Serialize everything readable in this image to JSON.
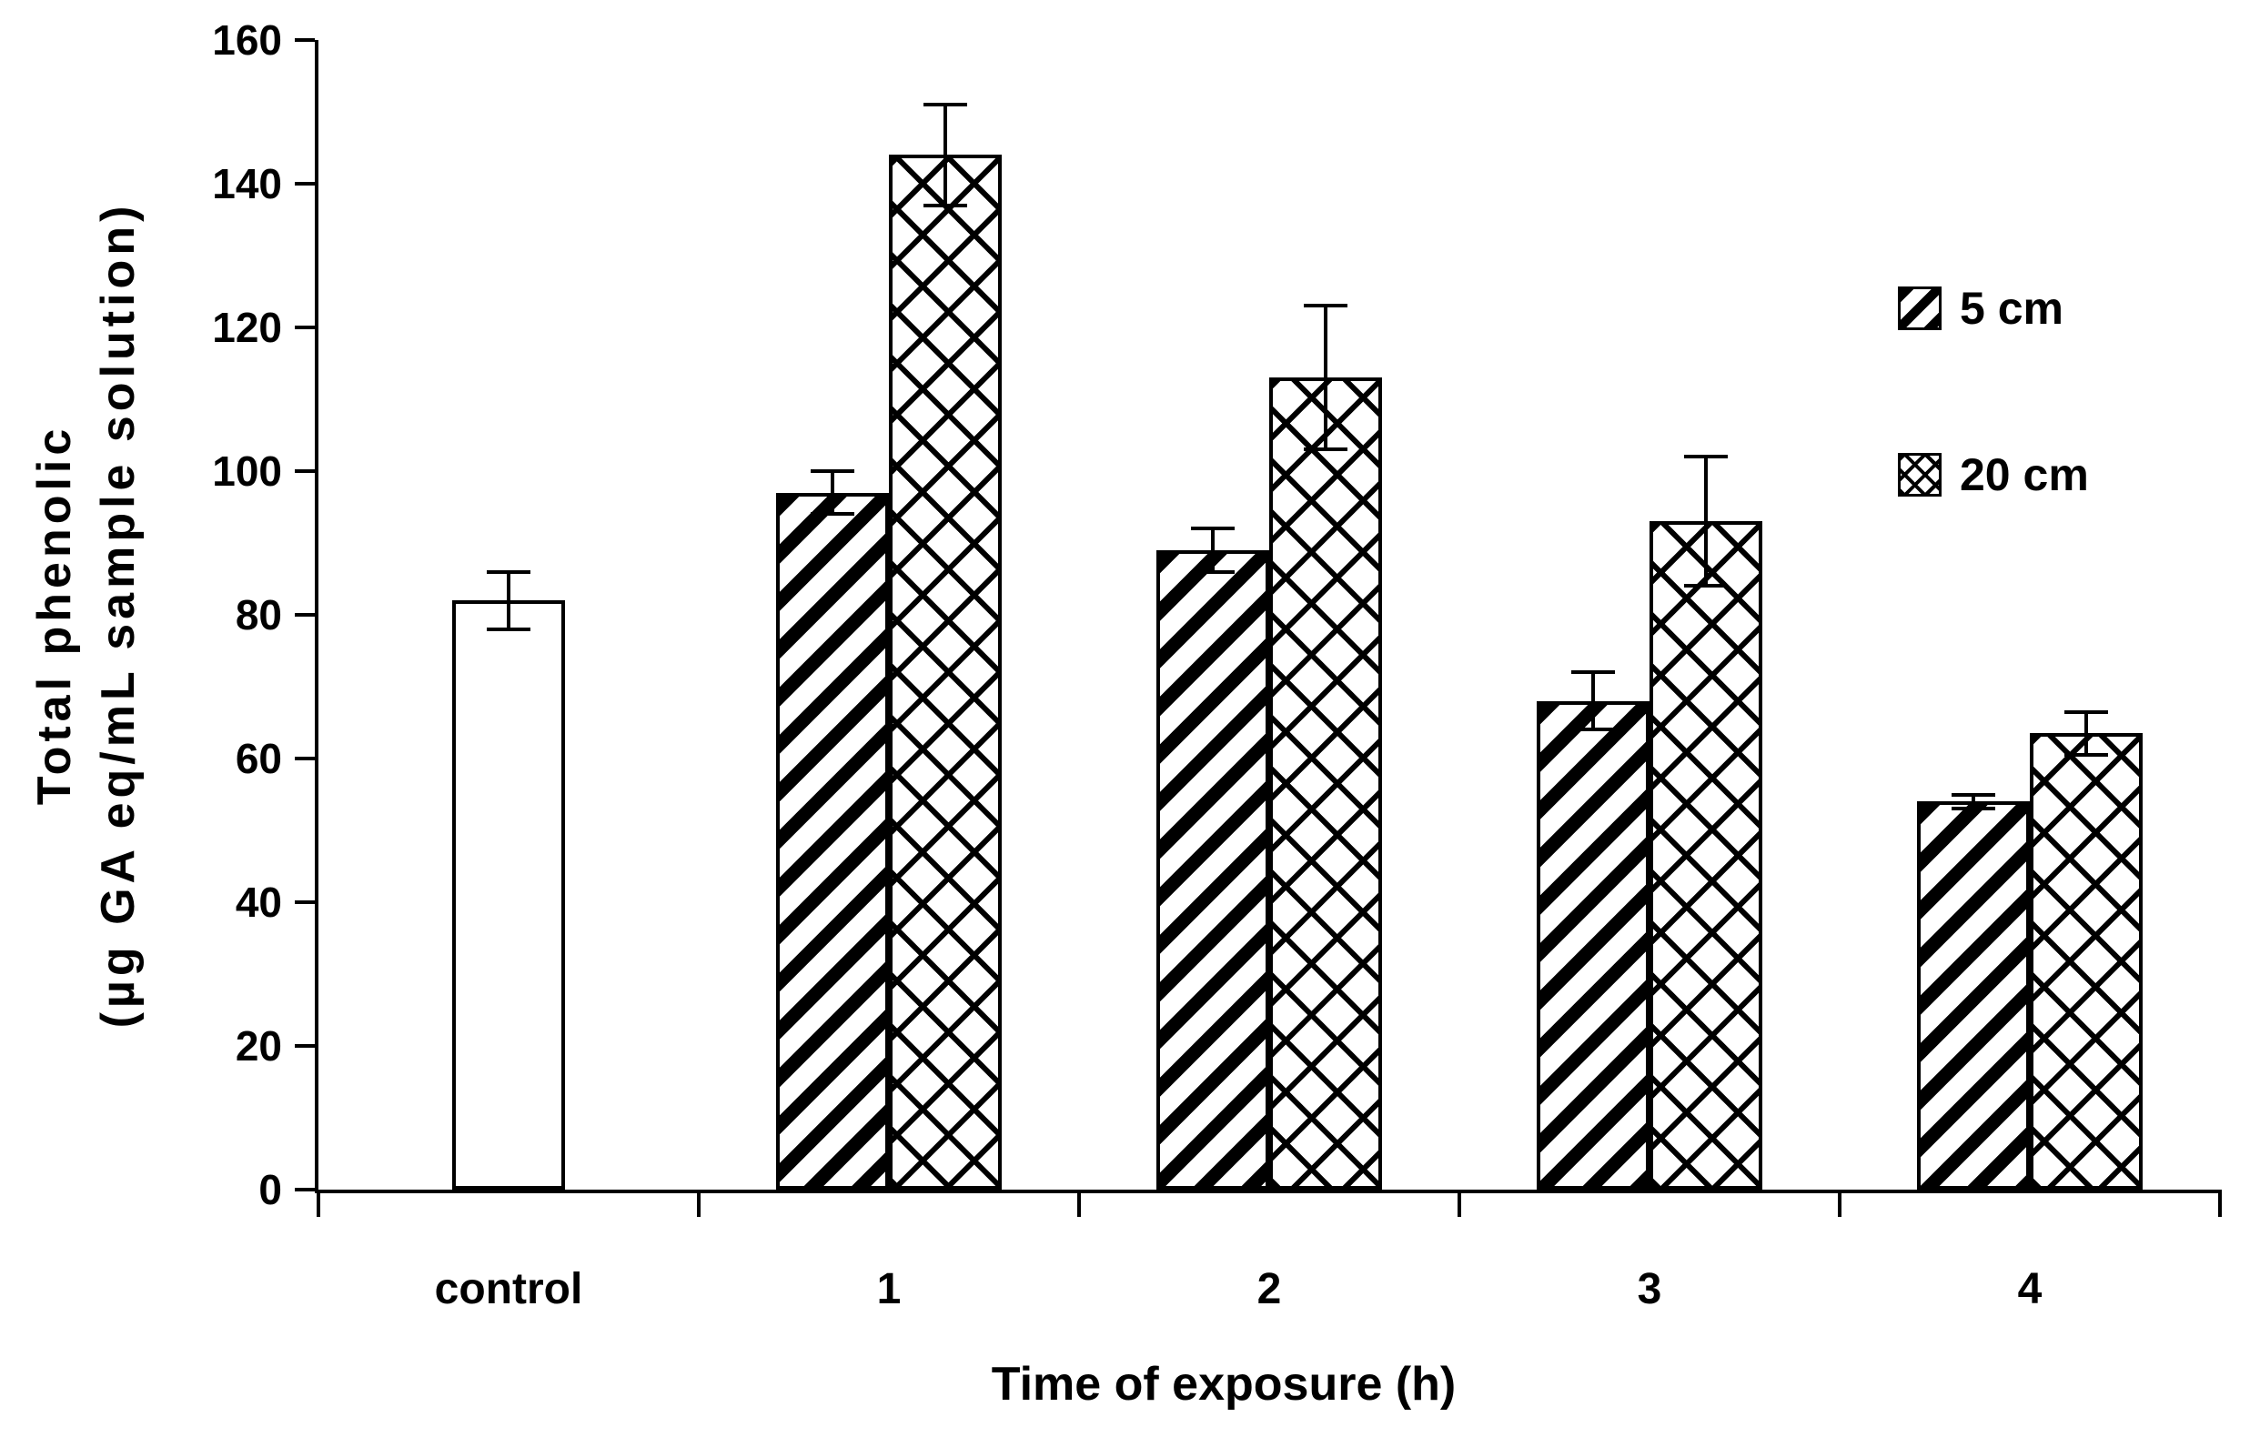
{
  "chart_data": {
    "type": "bar",
    "title": "",
    "xlabel": "Time of exposure (h)",
    "ylabel": "Total phenolic (µg GA eq/mL sample solution)",
    "ylabel_lines": [
      "Total phenolic",
      "(µg GA eq/mL sample solution)"
    ],
    "ylim": [
      0,
      160
    ],
    "yticks": [
      0,
      20,
      40,
      60,
      80,
      100,
      120,
      140,
      160
    ],
    "grid": false,
    "error_bars": true,
    "categories": [
      "control",
      "1",
      "2",
      "3",
      "4"
    ],
    "series": [
      {
        "name": "control",
        "pattern": "plain",
        "values": [
          82,
          null,
          null,
          null,
          null
        ],
        "errors": [
          4,
          null,
          null,
          null,
          null
        ]
      },
      {
        "name": "5 cm",
        "pattern": "diagonal-stripe",
        "values": [
          null,
          97,
          89,
          68,
          54
        ],
        "errors": [
          null,
          3,
          3,
          4,
          1
        ]
      },
      {
        "name": "20 cm",
        "pattern": "diamond-lattice",
        "values": [
          null,
          144,
          113,
          93,
          63.5
        ],
        "errors": [
          null,
          7,
          10,
          9,
          3
        ]
      }
    ],
    "legend": {
      "position": "upper-right",
      "entries": [
        {
          "label": "5 cm",
          "pattern": "diagonal-stripe"
        },
        {
          "label": "20 cm",
          "pattern": "diamond-lattice"
        }
      ]
    }
  }
}
